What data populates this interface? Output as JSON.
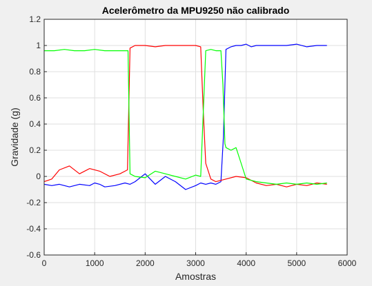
{
  "chart_data": {
    "type": "line",
    "title": "Acelerômetro da MPU9250 não calibrado",
    "xlabel": "Amostras",
    "ylabel": "Gravidade (g)",
    "xlim": [
      0,
      6000
    ],
    "ylim": [
      -0.6,
      1.2
    ],
    "xticks": [
      0,
      1000,
      2000,
      3000,
      4000,
      5000,
      6000
    ],
    "yticks": [
      -0.6,
      -0.4,
      -0.2,
      0,
      0.2,
      0.4,
      0.6,
      0.8,
      1,
      1.2
    ],
    "ytick_labels": [
      "-0.6",
      "-0.4",
      "-0.2",
      "0",
      "0.2",
      "0.4",
      "0.6",
      "0.8",
      "1",
      "1.2"
    ],
    "grid": true,
    "series": [
      {
        "color": "#0000ff",
        "x": [
          0,
          150,
          300,
          500,
          700,
          900,
          1000,
          1100,
          1200,
          1400,
          1600,
          1700,
          1800,
          2000,
          2200,
          2400,
          2600,
          2800,
          3000,
          3100,
          3200,
          3300,
          3400,
          3500,
          3550,
          3600,
          3700,
          3800,
          3900,
          4000,
          4100,
          4200,
          4400,
          4600,
          4800,
          5000,
          5200,
          5400,
          5600
        ],
        "y": [
          -0.06,
          -0.07,
          -0.06,
          -0.08,
          -0.06,
          -0.07,
          -0.05,
          -0.06,
          -0.08,
          -0.07,
          -0.05,
          -0.06,
          -0.04,
          0.02,
          -0.06,
          0.0,
          -0.04,
          -0.1,
          -0.07,
          -0.05,
          -0.06,
          -0.05,
          -0.06,
          -0.04,
          0.3,
          0.97,
          0.99,
          1.0,
          1.0,
          1.01,
          0.99,
          1.0,
          1.0,
          1.0,
          1.0,
          1.01,
          0.99,
          1.0,
          1.0
        ]
      },
      {
        "color": "#ff0000",
        "x": [
          0,
          150,
          300,
          500,
          700,
          900,
          1100,
          1300,
          1500,
          1650,
          1700,
          1800,
          2000,
          2200,
          2400,
          2600,
          2800,
          3000,
          3100,
          3150,
          3200,
          3300,
          3400,
          3600,
          3800,
          4000,
          4200,
          4400,
          4600,
          4800,
          5000,
          5200,
          5400,
          5600
        ],
        "y": [
          -0.04,
          -0.02,
          0.05,
          0.08,
          0.02,
          0.06,
          0.04,
          0.0,
          0.02,
          0.05,
          0.98,
          1.0,
          1.0,
          0.99,
          1.0,
          1.0,
          1.0,
          1.0,
          0.99,
          0.5,
          0.1,
          -0.02,
          -0.04,
          -0.02,
          0.0,
          -0.01,
          -0.05,
          -0.07,
          -0.06,
          -0.08,
          -0.06,
          -0.07,
          -0.05,
          -0.06
        ]
      },
      {
        "color": "#00ff00",
        "x": [
          0,
          200,
          400,
          600,
          800,
          1000,
          1200,
          1400,
          1600,
          1660,
          1700,
          1800,
          2000,
          2200,
          2400,
          2600,
          2800,
          3000,
          3100,
          3200,
          3300,
          3400,
          3500,
          3540,
          3580,
          3600,
          3700,
          3800,
          3900,
          4000,
          4200,
          4400,
          4600,
          4800,
          5000,
          5200,
          5400,
          5600
        ],
        "y": [
          0.96,
          0.96,
          0.97,
          0.96,
          0.96,
          0.97,
          0.96,
          0.96,
          0.96,
          0.96,
          0.02,
          0.0,
          -0.01,
          0.04,
          0.02,
          0.0,
          -0.02,
          0.01,
          0.0,
          0.96,
          0.97,
          0.96,
          0.96,
          0.7,
          0.25,
          0.22,
          0.2,
          0.22,
          0.1,
          -0.02,
          -0.04,
          -0.05,
          -0.06,
          -0.05,
          -0.06,
          -0.05,
          -0.06,
          -0.05
        ]
      }
    ]
  }
}
